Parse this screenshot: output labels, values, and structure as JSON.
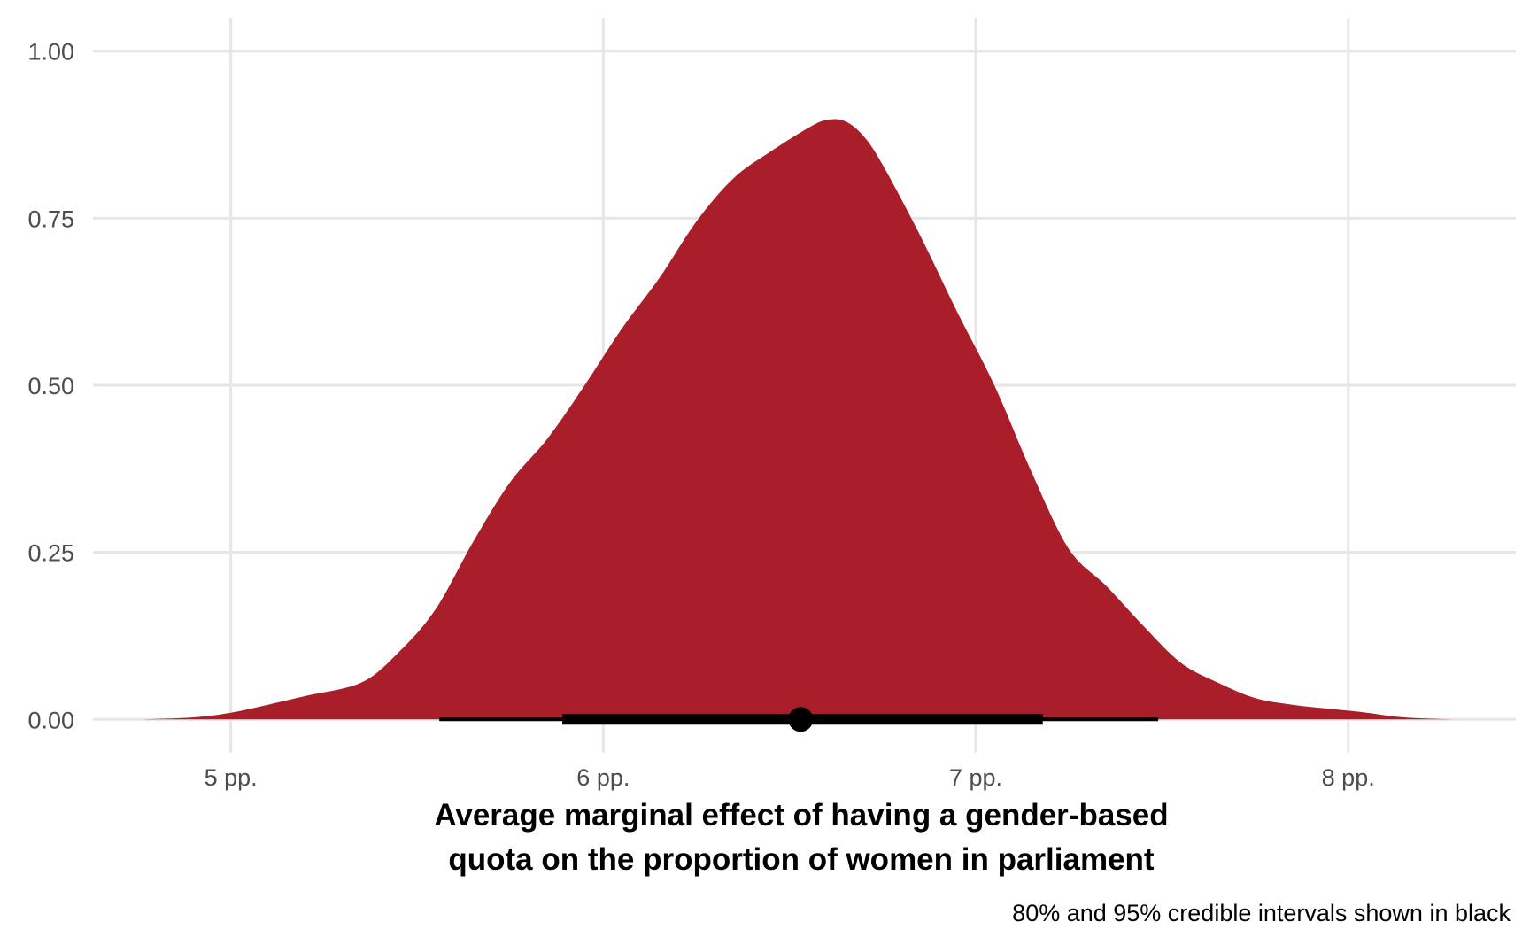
{
  "chart_data": {
    "type": "area",
    "xlabel_lines": [
      "Average marginal effect of having a gender-based",
      "quota on the proportion of women in parliament"
    ],
    "ylabel": "",
    "caption": "80% and 95% credible intervals shown in black",
    "xlim": [
      4.63,
      8.45
    ],
    "ylim": [
      -0.05,
      1.05
    ],
    "x_ticks": [
      5,
      6,
      7,
      8
    ],
    "x_tick_labels": [
      "5 pp.",
      "6 pp.",
      "7 pp.",
      "8 pp."
    ],
    "y_ticks": [
      0,
      0.25,
      0.5,
      0.75,
      1
    ],
    "y_tick_labels": [
      "0.00",
      "0.25",
      "0.50",
      "0.75",
      "1.00"
    ],
    "grid": true,
    "fill_color": "#A91E28",
    "interval_color": "#000000",
    "density": {
      "x": [
        4.76,
        4.9,
        5.0,
        5.1,
        5.2,
        5.35,
        5.45,
        5.55,
        5.65,
        5.75,
        5.85,
        5.95,
        6.05,
        6.15,
        6.25,
        6.35,
        6.45,
        6.55,
        6.6,
        6.65,
        6.7,
        6.75,
        6.85,
        6.95,
        7.05,
        7.15,
        7.25,
        7.35,
        7.45,
        7.55,
        7.65,
        7.75,
        7.85,
        7.95,
        8.05,
        8.15,
        8.28
      ],
      "y": [
        0.0,
        0.003,
        0.01,
        0.022,
        0.035,
        0.055,
        0.1,
        0.165,
        0.265,
        0.355,
        0.42,
        0.5,
        0.585,
        0.66,
        0.745,
        0.81,
        0.85,
        0.885,
        0.897,
        0.895,
        0.872,
        0.83,
        0.725,
        0.61,
        0.5,
        0.37,
        0.255,
        0.2,
        0.14,
        0.085,
        0.055,
        0.032,
        0.022,
        0.016,
        0.01,
        0.003,
        0.0
      ]
    },
    "point_estimate": 6.53,
    "interval_80": [
      5.89,
      7.18
    ],
    "interval_95": [
      5.56,
      7.49
    ]
  }
}
